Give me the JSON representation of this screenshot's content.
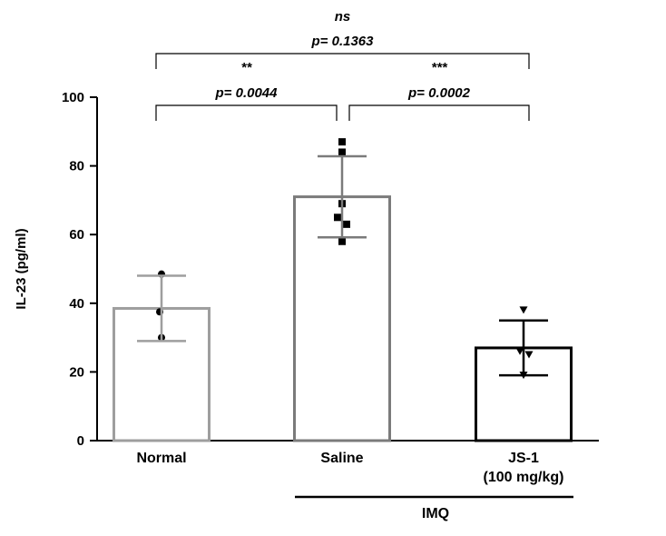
{
  "chart_data": {
    "type": "bar",
    "ylabel": "IL-23 (pg/ml)",
    "ylim": [
      0,
      100
    ],
    "yticks": [
      0,
      20,
      40,
      60,
      80,
      100
    ],
    "categories": [
      {
        "label": "Normal",
        "label2": ""
      },
      {
        "label": "Saline",
        "label2": ""
      },
      {
        "label": "JS-1",
        "label2": "(100 mg/kg)"
      }
    ],
    "series": [
      {
        "values": [
          38.5,
          71,
          27
        ],
        "sd": [
          9.5,
          11.8,
          8
        ],
        "colors": [
          "#9e9e9e",
          "#7b7b7b",
          "#000000"
        ],
        "markers": [
          "circle",
          "square",
          "triangle-down"
        ],
        "points": [
          [
            48.5,
            37.5,
            30
          ],
          [
            87,
            84,
            69,
            65,
            63,
            58
          ],
          [
            38,
            26,
            25,
            19
          ]
        ]
      }
    ],
    "group_label": "IMQ",
    "comparisons": [
      {
        "from": 0,
        "to": 1,
        "stars": "**",
        "p": "p= 0.0044",
        "level": 1
      },
      {
        "from": 1,
        "to": 2,
        "stars": "***",
        "p": "p= 0.0002",
        "level": 1
      },
      {
        "from": 0,
        "to": 2,
        "stars": "ns",
        "p": "p= 0.1363",
        "level": 2
      }
    ]
  }
}
